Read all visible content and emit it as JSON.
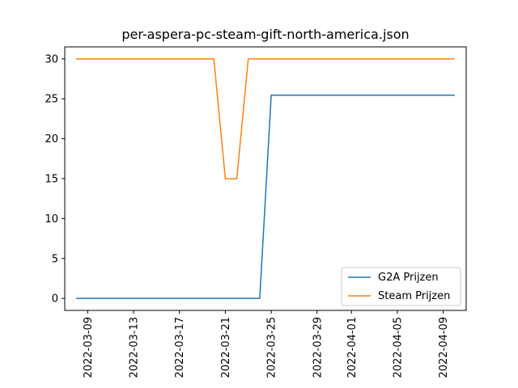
{
  "chart_data": {
    "type": "line",
    "title": "per-aspera-pc-steam-gift-north-america.json",
    "xlabel": "",
    "ylabel": "",
    "x_axis": "date",
    "xlim": [
      "2022-03-07",
      "2022-04-11"
    ],
    "ylim": [
      -1.5,
      31.5
    ],
    "x_ticks": [
      "2022-03-09",
      "2022-03-13",
      "2022-03-17",
      "2022-03-21",
      "2022-03-25",
      "2022-03-29",
      "2022-04-01",
      "2022-04-05",
      "2022-04-09"
    ],
    "y_ticks": [
      0,
      5,
      10,
      15,
      20,
      25,
      30
    ],
    "grid": false,
    "legend": "lower right",
    "series": [
      {
        "name": "G2A Prijzen",
        "color": "#1f77b4",
        "points": [
          [
            "2022-03-08",
            0
          ],
          [
            "2022-03-24",
            0
          ],
          [
            "2022-03-25",
            25.45
          ],
          [
            "2022-04-10",
            25.45
          ]
        ]
      },
      {
        "name": "Steam Prijzen",
        "color": "#ff7f0e",
        "points": [
          [
            "2022-03-08",
            29.99
          ],
          [
            "2022-03-20",
            29.99
          ],
          [
            "2022-03-21",
            14.99
          ],
          [
            "2022-03-22",
            14.99
          ],
          [
            "2022-03-23",
            29.99
          ],
          [
            "2022-04-10",
            29.99
          ]
        ]
      }
    ]
  }
}
